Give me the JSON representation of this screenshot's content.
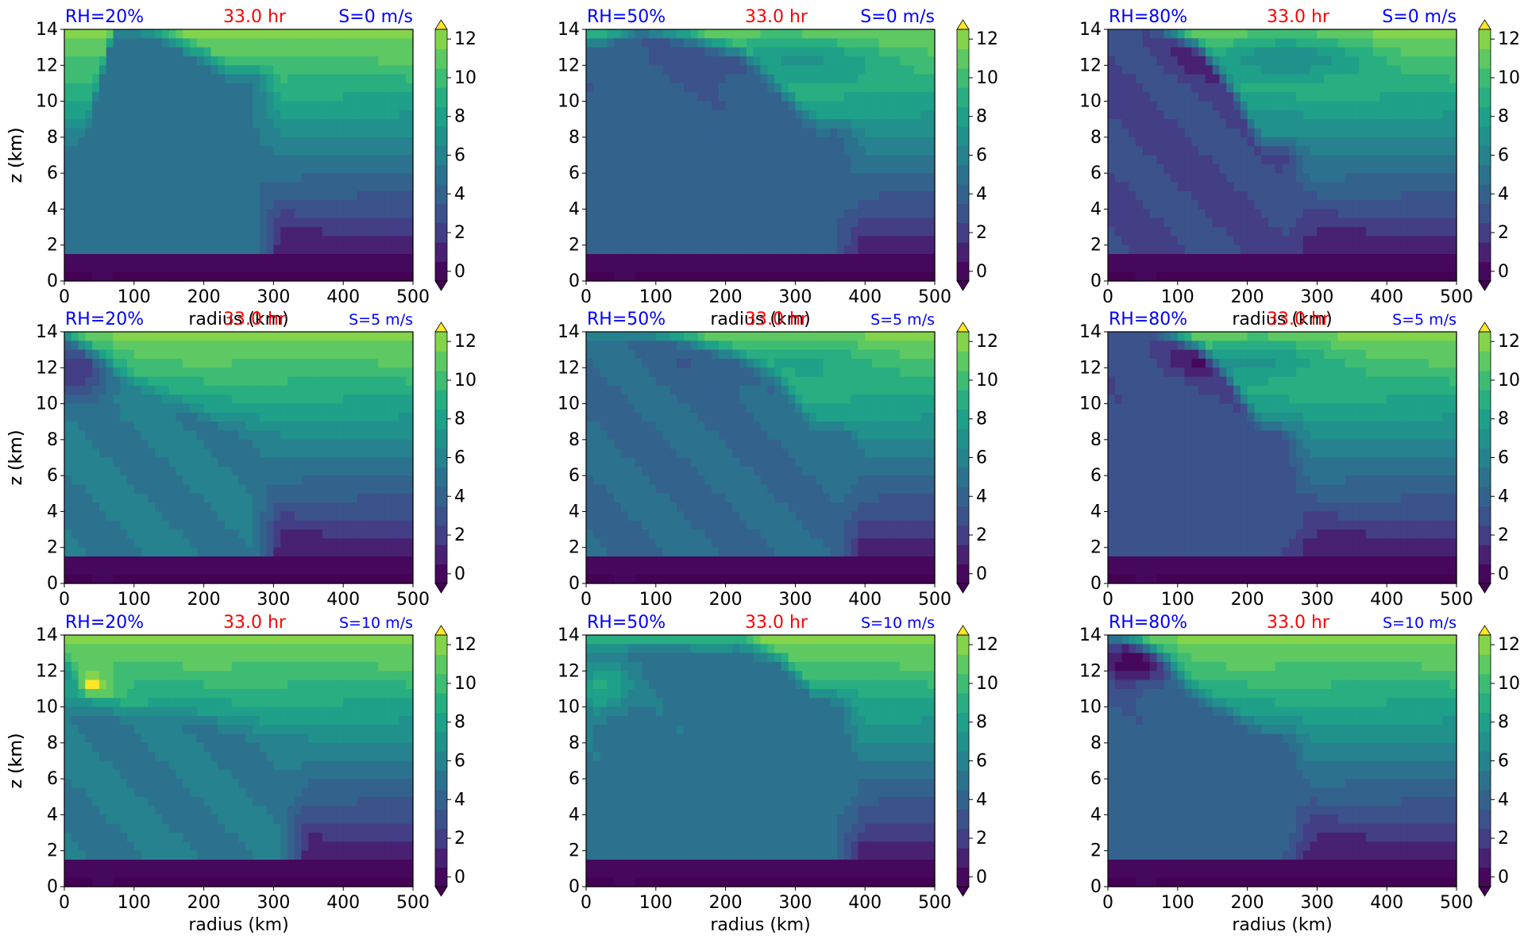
{
  "figure": {
    "time_label": "33.0 hr",
    "x_label": "radius (km)",
    "y_label": "z (km)",
    "colors": {
      "rh_text": "#0000ff",
      "time_text": "#ff0000",
      "shear_text": "#0000ff"
    },
    "colormap": "viridis",
    "contour_levels": [
      0,
      1,
      2,
      3,
      4,
      5,
      6,
      7,
      8,
      9,
      10,
      11,
      12,
      13
    ],
    "colorbar_ticks": [
      "0",
      "2",
      "4",
      "6",
      "8",
      "10",
      "12"
    ],
    "colorbar_extend": "both"
  },
  "chart_data": [
    {
      "type": "heatmap",
      "row": 0,
      "col": 0,
      "rh_label": "RH=20%",
      "shear_label": "S=0 m/s",
      "shear_large": true,
      "x": {
        "label": "radius (km)",
        "range": [
          0,
          500
        ],
        "ticks": [
          "0",
          "100",
          "200",
          "300",
          "400",
          "500"
        ]
      },
      "y": {
        "label": "z (km)",
        "range": [
          0,
          14
        ],
        "ticks": [
          "0",
          "2",
          "4",
          "6",
          "8",
          "10",
          "12",
          "14"
        ]
      },
      "core": {
        "x": [
          30,
          70,
          110,
          150,
          200,
          240
        ],
        "top": [
          7.5,
          13.5,
          13.5,
          13,
          12,
          11
        ],
        "value": 5.5
      },
      "upper_trough": {
        "center": [
          190,
          12.5
        ],
        "spread": [
          130,
          1.5
        ],
        "depth": 0
      }
    },
    {
      "type": "heatmap",
      "row": 0,
      "col": 1,
      "rh_label": "RH=50%",
      "shear_label": "S=0 m/s",
      "shear_large": true,
      "x": {
        "label": "radius (km)",
        "range": [
          0,
          500
        ],
        "ticks": [
          "0",
          "100",
          "200",
          "300",
          "400",
          "500"
        ]
      },
      "y": {
        "label": "z (km)",
        "range": [
          0,
          14
        ],
        "ticks": [
          "0",
          "2",
          "4",
          "6",
          "8",
          "10",
          "12",
          "14"
        ]
      },
      "core": {
        "x": [
          20,
          80,
          150,
          220,
          280,
          330
        ],
        "top": [
          13,
          13.5,
          13,
          12,
          10,
          8
        ],
        "value": 4.5
      },
      "upper_trough": {
        "center": [
          300,
          12.5
        ],
        "spread": [
          140,
          1.3
        ],
        "depth": 3
      }
    },
    {
      "type": "heatmap",
      "row": 0,
      "col": 2,
      "rh_label": "RH=80%",
      "shear_label": "S=0 m/s",
      "shear_large": true,
      "x": {
        "label": "radius (km)",
        "range": [
          0,
          500
        ],
        "ticks": [
          "0",
          "100",
          "200",
          "300",
          "400",
          "500"
        ]
      },
      "y": {
        "label": "z (km)",
        "range": [
          0,
          14
        ],
        "ticks": [
          "0",
          "2",
          "4",
          "6",
          "8",
          "10",
          "12",
          "14"
        ]
      },
      "core": {
        "x": [
          10,
          40,
          80,
          130,
          180,
          220
        ],
        "top": [
          14,
          14,
          13.5,
          12.5,
          10,
          7
        ],
        "value": 3
      },
      "upper_trough": {
        "center": [
          250,
          12.5
        ],
        "spread": [
          120,
          1.2
        ],
        "depth": 4
      }
    },
    {
      "type": "heatmap",
      "row": 1,
      "col": 0,
      "rh_label": "RH=20%",
      "shear_label": "S=5 m/s",
      "shear_large": false,
      "x": {
        "label": "",
        "range": [
          0,
          500
        ],
        "ticks": [
          "0",
          "100",
          "200",
          "300",
          "400",
          "500"
        ]
      },
      "y": {
        "label": "z (km)",
        "range": [
          0,
          14
        ],
        "ticks": [
          "0",
          "2",
          "4",
          "6",
          "8",
          "10",
          "12",
          "14"
        ]
      },
      "core": {
        "x": [
          0,
          30,
          80,
          130,
          190,
          240
        ],
        "top": [
          13.5,
          12.5,
          11,
          10,
          9,
          8
        ],
        "value": 6
      },
      "upper_trough": {
        "center": [
          20,
          12
        ],
        "spread": [
          50,
          1.5
        ],
        "depth": 4
      }
    },
    {
      "type": "heatmap",
      "row": 1,
      "col": 1,
      "rh_label": "RH=50%",
      "shear_label": "S=5 m/s",
      "shear_large": false,
      "x": {
        "label": "",
        "range": [
          0,
          500
        ],
        "ticks": [
          "0",
          "100",
          "200",
          "300",
          "400",
          "500"
        ]
      },
      "y": {
        "label": "z (km)",
        "range": [
          0,
          14
        ],
        "ticks": [
          "0",
          "2",
          "4",
          "6",
          "8",
          "10",
          "12",
          "14"
        ]
      },
      "core": {
        "x": [
          20,
          80,
          150,
          220,
          280,
          330
        ],
        "top": [
          13.5,
          13.5,
          13,
          12,
          10.5,
          8
        ],
        "value": 5
      },
      "upper_trough": {
        "center": [
          290,
          12.5
        ],
        "spread": [
          140,
          1.3
        ],
        "depth": 2
      }
    },
    {
      "type": "heatmap",
      "row": 1,
      "col": 2,
      "rh_label": "RH=80%",
      "shear_label": "S=5 m/s",
      "shear_large": false,
      "x": {
        "label": "",
        "range": [
          0,
          500
        ],
        "ticks": [
          "0",
          "100",
          "200",
          "300",
          "400",
          "500"
        ]
      },
      "y": {
        "label": "z (km)",
        "range": [
          0,
          14
        ],
        "ticks": [
          "0",
          "2",
          "4",
          "6",
          "8",
          "10",
          "12",
          "14"
        ]
      },
      "core": {
        "x": [
          10,
          40,
          80,
          130,
          180,
          220
        ],
        "top": [
          14,
          14,
          13.5,
          12.5,
          10.5,
          8
        ],
        "value": 3.5
      },
      "upper_trough": {
        "center": [
          200,
          12.5
        ],
        "spread": [
          110,
          1.2
        ],
        "depth": 3.5
      }
    },
    {
      "type": "heatmap",
      "row": 2,
      "col": 0,
      "rh_label": "RH=20%",
      "shear_label": "S=10 m/s",
      "shear_large": false,
      "x": {
        "label": "radius (km)",
        "range": [
          0,
          500
        ],
        "ticks": [
          "0",
          "100",
          "200",
          "300",
          "400",
          "500"
        ]
      },
      "y": {
        "label": "z (km)",
        "range": [
          0,
          14
        ],
        "ticks": [
          "0",
          "2",
          "4",
          "6",
          "8",
          "10",
          "12",
          "14"
        ]
      },
      "core": {
        "x": [
          0,
          40,
          100,
          160,
          220,
          280
        ],
        "top": [
          12,
          10,
          9,
          9,
          8.5,
          8
        ],
        "value": 6
      },
      "upper_trough": {
        "center": [
          30,
          11
        ],
        "spread": [
          40,
          1
        ],
        "depth": -4
      }
    },
    {
      "type": "heatmap",
      "row": 2,
      "col": 1,
      "rh_label": "RH=50%",
      "shear_label": "S=10 m/s",
      "shear_large": false,
      "x": {
        "label": "radius (km)",
        "range": [
          0,
          500
        ],
        "ticks": [
          "0",
          "100",
          "200",
          "300",
          "400",
          "500"
        ]
      },
      "y": {
        "label": "z (km)",
        "range": [
          0,
          14
        ],
        "ticks": [
          "0",
          "2",
          "4",
          "6",
          "8",
          "10",
          "12",
          "14"
        ]
      },
      "core": {
        "x": [
          40,
          100,
          160,
          220,
          280,
          330
        ],
        "top": [
          13,
          13,
          13,
          13,
          12,
          10
        ],
        "value": 5.5
      },
      "upper_trough": {
        "center": [
          20,
          11
        ],
        "spread": [
          40,
          1.5
        ],
        "depth": -4
      }
    },
    {
      "type": "heatmap",
      "row": 2,
      "col": 2,
      "rh_label": "RH=80%",
      "shear_label": "S=10 m/s",
      "shear_large": false,
      "x": {
        "label": "radius (km)",
        "range": [
          0,
          500
        ],
        "ticks": [
          "0",
          "100",
          "200",
          "300",
          "400",
          "500"
        ]
      },
      "y": {
        "label": "z (km)",
        "range": [
          0,
          14
        ],
        "ticks": [
          "0",
          "2",
          "4",
          "6",
          "8",
          "10",
          "12",
          "14"
        ]
      },
      "core": {
        "x": [
          10,
          40,
          80,
          130,
          180,
          220
        ],
        "top": [
          13.5,
          13,
          12,
          10,
          9,
          8
        ],
        "value": 4.5
      },
      "upper_trough": {
        "center": [
          40,
          12.5
        ],
        "spread": [
          50,
          1.2
        ],
        "depth": 5
      }
    }
  ]
}
